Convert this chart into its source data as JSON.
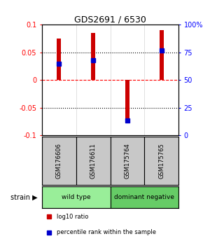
{
  "title": "GDS2691 / 6530",
  "samples": [
    "GSM176606",
    "GSM176611",
    "GSM175764",
    "GSM175765"
  ],
  "log10_ratios": [
    0.075,
    0.085,
    -0.075,
    0.09
  ],
  "percentile_ranks": [
    0.65,
    0.68,
    0.13,
    0.77
  ],
  "groups": [
    {
      "name": "wild type",
      "indices": [
        0,
        1
      ],
      "color": "#99ee99"
    },
    {
      "name": "dominant negative",
      "indices": [
        2,
        3
      ],
      "color": "#66cc66"
    }
  ],
  "group_label": "strain",
  "ylim": [
    -0.1,
    0.1
  ],
  "yticks_left": [
    -0.1,
    -0.05,
    0,
    0.05,
    0.1
  ],
  "yticks_right": [
    0,
    25,
    50,
    75,
    100
  ],
  "grid_values": [
    -0.05,
    0.05
  ],
  "zero_line": 0,
  "bar_color": "#cc0000",
  "blue_color": "#0000cc",
  "bar_width": 0.12,
  "blue_size": 5,
  "sample_label_bg": "#c8c8c8",
  "legend_red": "log10 ratio",
  "legend_blue": "percentile rank within the sample",
  "background_color": "#ffffff"
}
